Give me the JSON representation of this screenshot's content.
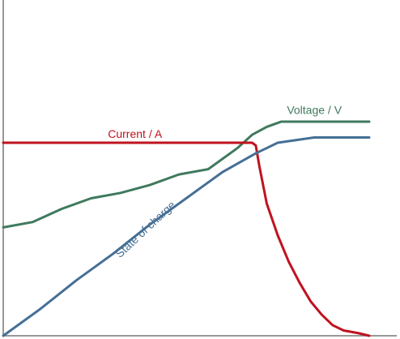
{
  "chart_data": {
    "type": "line",
    "title": "",
    "xlabel": "",
    "ylabel": "",
    "grid": false,
    "xlim": [
      0,
      100
    ],
    "ylim": [
      0,
      100
    ],
    "series": [
      {
        "name": "Voltage / V",
        "color": "#3F7A5E",
        "x": [
          0,
          8,
          16,
          24,
          32,
          40,
          48,
          56,
          64,
          68,
          72,
          76,
          80,
          84,
          88,
          92,
          96,
          100
        ],
        "y": [
          41,
          43,
          48,
          52,
          54,
          57,
          61,
          63,
          71,
          76,
          79,
          81,
          81,
          81,
          81,
          81,
          81,
          81
        ]
      },
      {
        "name": "Current / A",
        "color": "#C0121F",
        "x": [
          0,
          68,
          69,
          70,
          72,
          75,
          78,
          81,
          84,
          87,
          90,
          93,
          97,
          100
        ],
        "y": [
          73,
          73,
          72,
          64,
          50,
          38,
          28,
          20,
          13,
          8,
          4,
          2,
          1,
          0
        ]
      },
      {
        "name": "State of charge",
        "color": "#456F95",
        "x": [
          0,
          10,
          20,
          30,
          40,
          50,
          60,
          69,
          72,
          75,
          80,
          85,
          90,
          95,
          100
        ],
        "y": [
          0,
          10,
          21,
          31,
          42,
          52,
          62,
          69,
          71,
          73,
          74,
          75,
          75,
          75,
          75
        ]
      }
    ],
    "labels": [
      {
        "text": "Voltage / V",
        "series": "Voltage / V",
        "x": 85,
        "y": 85,
        "rotate": 0
      },
      {
        "text": "Current / A",
        "series": "Current / A",
        "x": 36,
        "y": 76,
        "rotate": 0
      },
      {
        "text": "State of charge",
        "series": "State of charge",
        "x": 39,
        "y": 40,
        "rotate": -43
      }
    ]
  }
}
